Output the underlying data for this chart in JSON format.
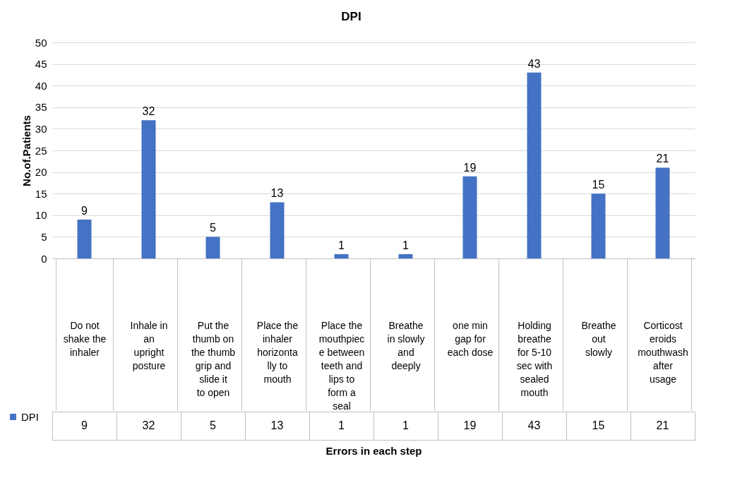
{
  "chart_data": {
    "type": "bar",
    "title": "DPI",
    "xlabel": "Errors in each step",
    "ylabel": "No.of.Patients",
    "categories": [
      "Do not shake the inhaler",
      "Inhale in an upright posture",
      "Put the thumb on the thumb grip and slide it to open",
      "Place the inhaler horizontally to mouth",
      "Place the mouthpiece between teeth and lips to form a seal",
      "Breathe in slowly and deeply",
      "one min gap for each dose",
      "Holding breathe for 5-10 sec with sealed mouth",
      "Breathe out slowly",
      "Corticosteroids mouthwash after usage"
    ],
    "series": [
      {
        "name": "DPI",
        "color": "#4472c4",
        "values": [
          9,
          32,
          5,
          13,
          1,
          1,
          19,
          43,
          15,
          21
        ],
        "value_labels": [
          "9",
          "32",
          "5",
          "13",
          "1",
          "1",
          "19",
          "43",
          "15",
          "21"
        ]
      }
    ],
    "ylim": [
      0,
      50
    ],
    "yticks": [
      0,
      5,
      10,
      15,
      20,
      25,
      30,
      35,
      40,
      45,
      50
    ],
    "grid": "y",
    "data_labels": true,
    "legend": "bottom left"
  }
}
